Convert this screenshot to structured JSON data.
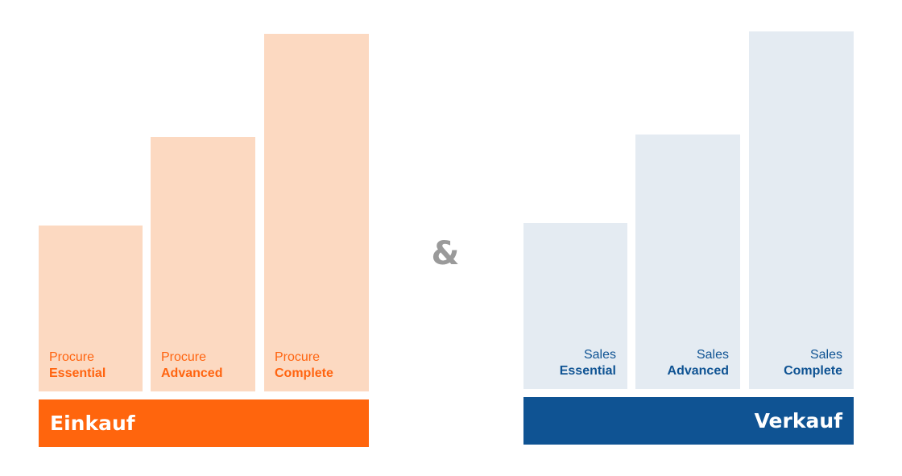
{
  "colors": {
    "procure_accent": "#ff650d",
    "procure_bar": "#fcd9c1",
    "procure_text": "#ff6410",
    "sales_accent": "#0f5393",
    "sales_bar": "#e4ebf2",
    "connector": "#9a9a9a"
  },
  "procure": {
    "title": "Einkauf",
    "tiers": [
      {
        "line1": "Procure",
        "line2": "Essential"
      },
      {
        "line1": "Procure",
        "line2": "Advanced"
      },
      {
        "line1": "Procure",
        "line2": "Complete"
      }
    ]
  },
  "connector": "&",
  "sales": {
    "title": "Verkauf",
    "tiers": [
      {
        "line1": "Sales",
        "line2": "Essential"
      },
      {
        "line1": "Sales",
        "line2": "Advanced"
      },
      {
        "line1": "Sales",
        "line2": "Complete"
      }
    ]
  }
}
